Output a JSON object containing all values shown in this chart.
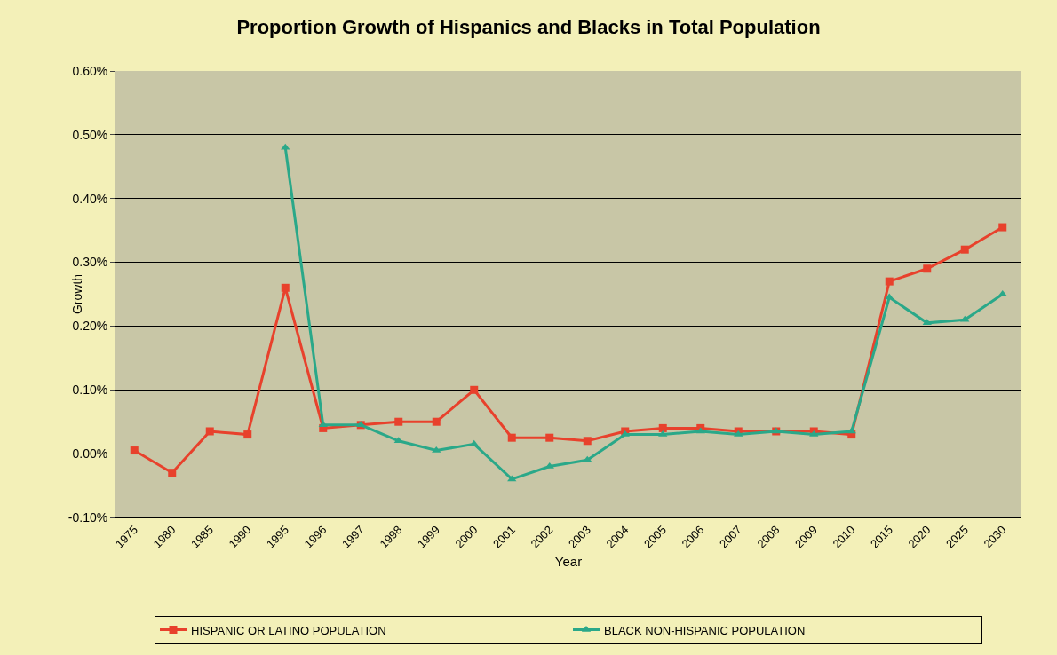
{
  "chart_data": {
    "type": "line",
    "title": "Proportion Growth of Hispanics and Blacks in Total Population",
    "xlabel": "Year",
    "ylabel": "Growth",
    "categories": [
      "1975",
      "1980",
      "1985",
      "1990",
      "1995",
      "1996",
      "1997",
      "1998",
      "1999",
      "2000",
      "2001",
      "2002",
      "2003",
      "2004",
      "2005",
      "2006",
      "2007",
      "2008",
      "2009",
      "2010",
      "2015",
      "2020",
      "2025",
      "2030"
    ],
    "series": [
      {
        "name": "HISPANIC OR LATINO POPULATION",
        "color": "#e8412c",
        "marker": "square",
        "values": [
          0.005,
          -0.03,
          0.035,
          0.03,
          0.26,
          0.04,
          0.045,
          0.05,
          0.05,
          0.1,
          0.025,
          0.025,
          0.02,
          0.035,
          0.04,
          0.04,
          0.035,
          0.035,
          0.035,
          0.03,
          0.27,
          0.29,
          0.32,
          0.355
        ]
      },
      {
        "name": "BLACK NON-HISPANIC POPULATION",
        "color": "#2aa889",
        "marker": "triangle",
        "values": [
          null,
          null,
          null,
          null,
          0.48,
          0.045,
          0.045,
          0.02,
          0.005,
          0.015,
          -0.04,
          -0.02,
          -0.01,
          0.03,
          0.03,
          0.035,
          0.03,
          0.035,
          0.03,
          0.035,
          0.245,
          0.205,
          0.21,
          0.25
        ]
      }
    ],
    "ylim": [
      -0.1,
      0.6
    ],
    "yticks": [
      {
        "value": -0.1,
        "label": "-0.10%"
      },
      {
        "value": 0,
        "label": "0.00%"
      },
      {
        "value": 0.1,
        "label": "0.10%"
      },
      {
        "value": 0.2,
        "label": "0.20%"
      },
      {
        "value": 0.3,
        "label": "0.30%"
      },
      {
        "value": 0.4,
        "label": "0.40%"
      },
      {
        "value": 0.5,
        "label": "0.50%"
      },
      {
        "value": 0.6,
        "label": "0.60%"
      }
    ],
    "grid": "y",
    "legend": "bottom",
    "line_style": "solid"
  }
}
